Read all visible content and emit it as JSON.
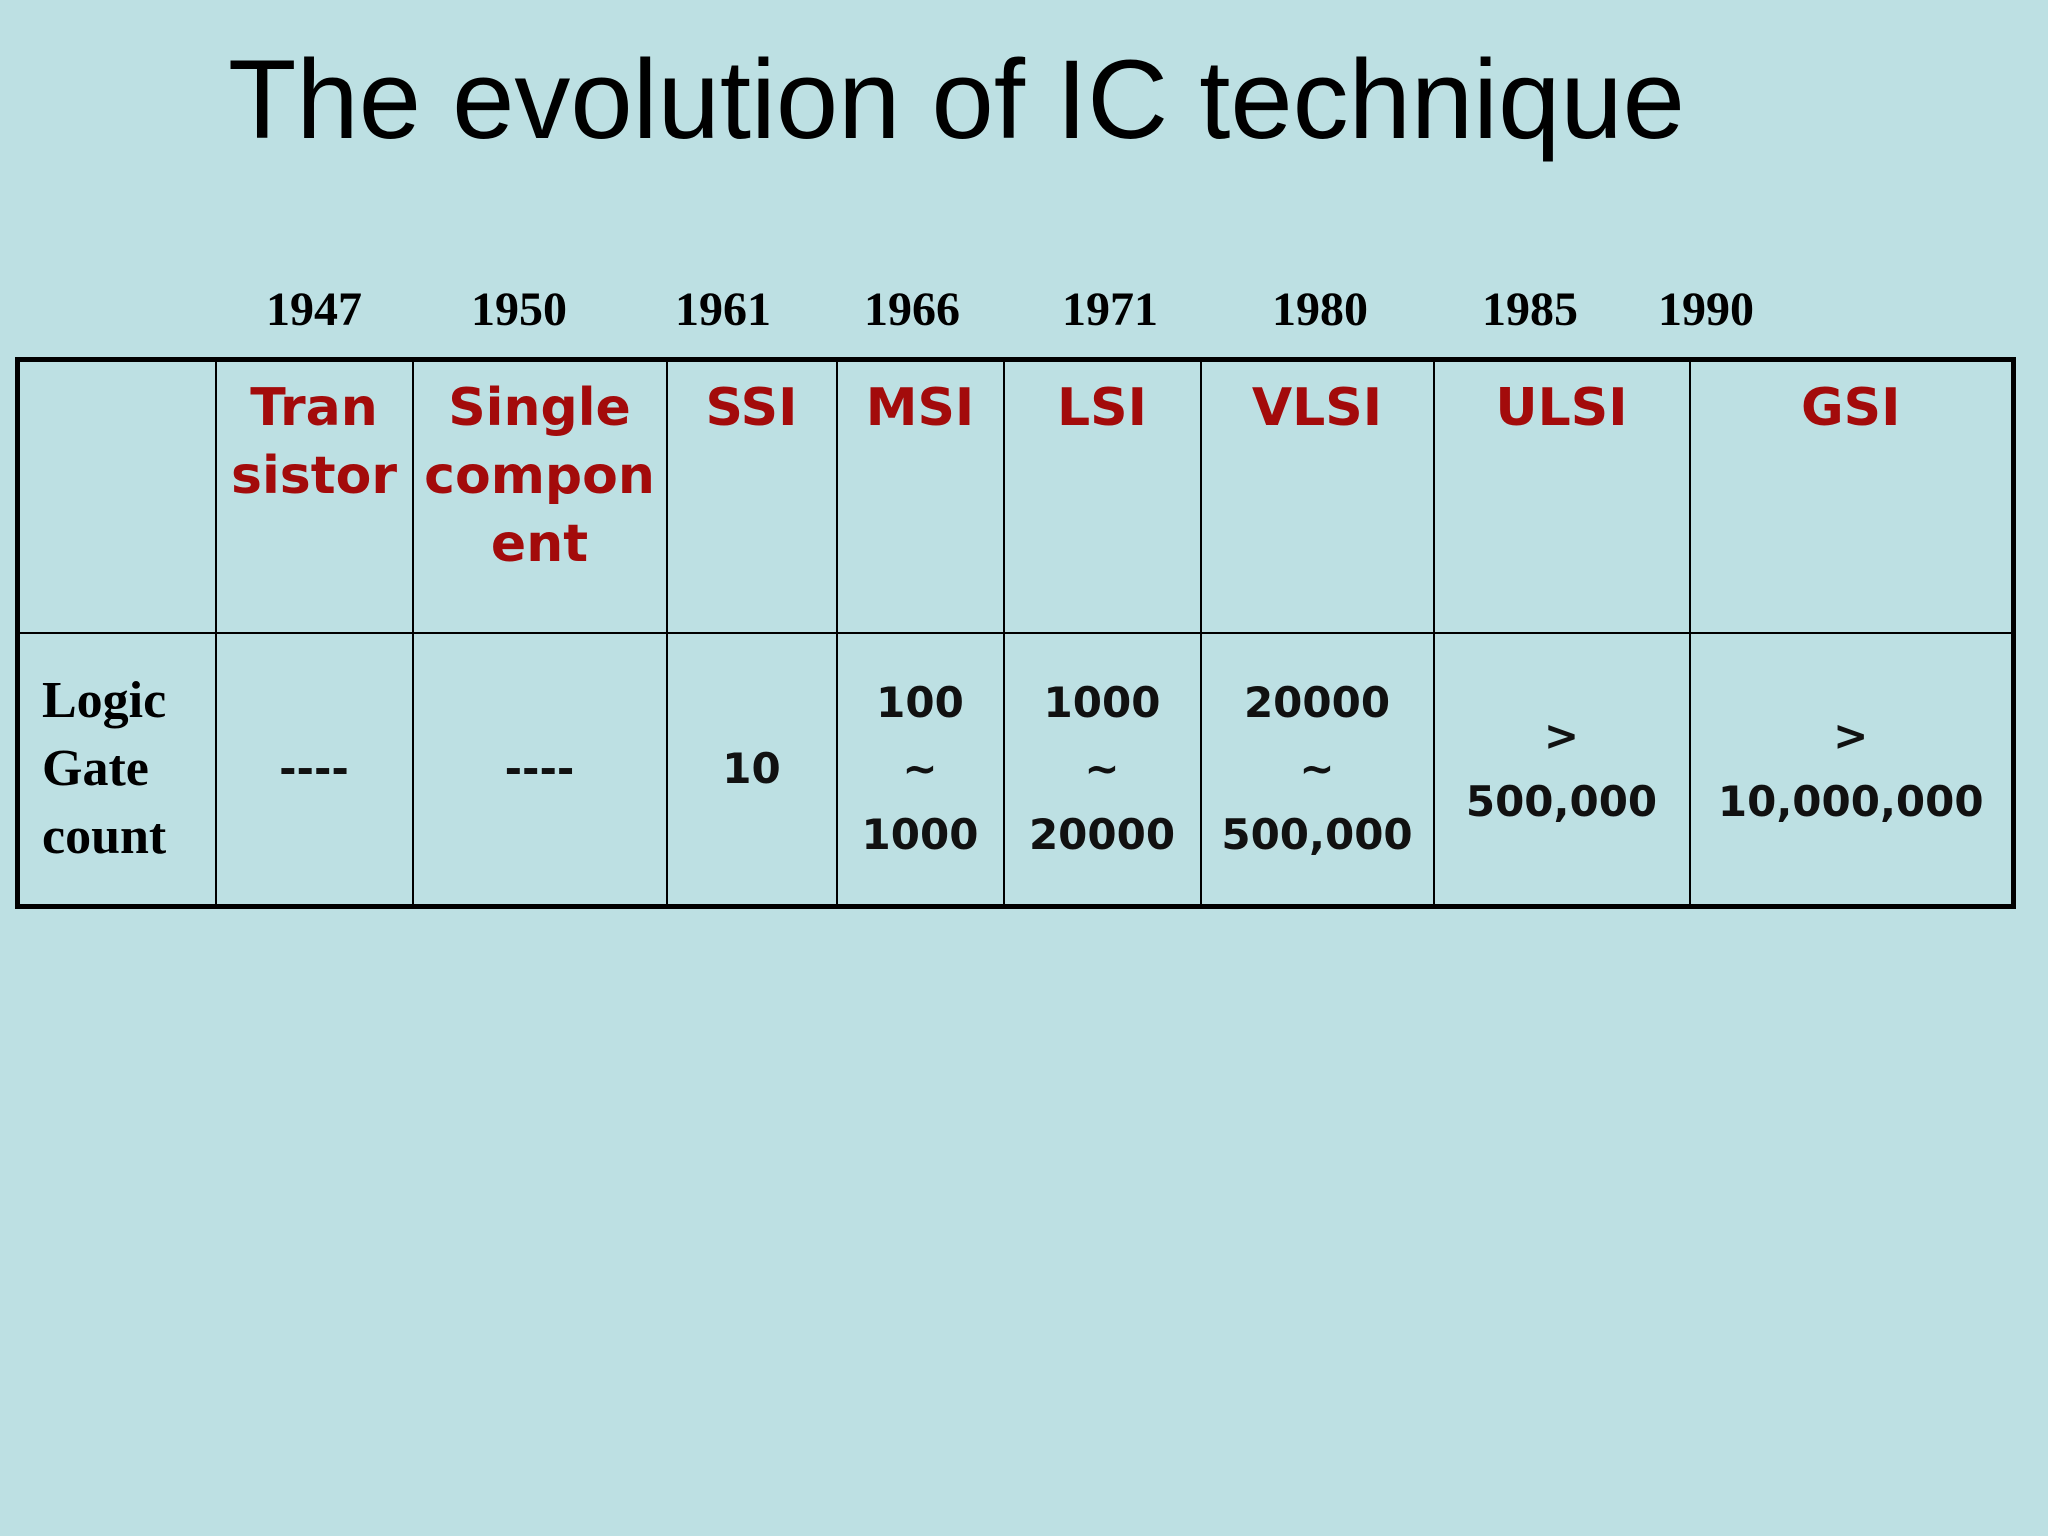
{
  "title": "The evolution of IC technique",
  "years": [
    "1947",
    "1950",
    "1961",
    "1966",
    "1971",
    "1980",
    "1985",
    "1990"
  ],
  "table": {
    "row_label": "Logic\nGate\ncount",
    "columns": [
      {
        "tech": "Tran\nsistor",
        "count": "----"
      },
      {
        "tech": "Single\ncompon\nent",
        "count": "----"
      },
      {
        "tech": "SSI",
        "count": "10"
      },
      {
        "tech": "MSI",
        "count": "100\n~\n1000"
      },
      {
        "tech": "LSI",
        "count": "1000\n~\n20000"
      },
      {
        "tech": "VLSI",
        "count": "20000\n~\n500,000"
      },
      {
        "tech": "ULSI",
        "count": ">\n500,000"
      },
      {
        "tech": "GSI",
        "count": ">\n10,000,000"
      }
    ]
  },
  "colors": {
    "background": "#bde0e3",
    "tech_label": "#a30b0b",
    "text": "#000000"
  }
}
